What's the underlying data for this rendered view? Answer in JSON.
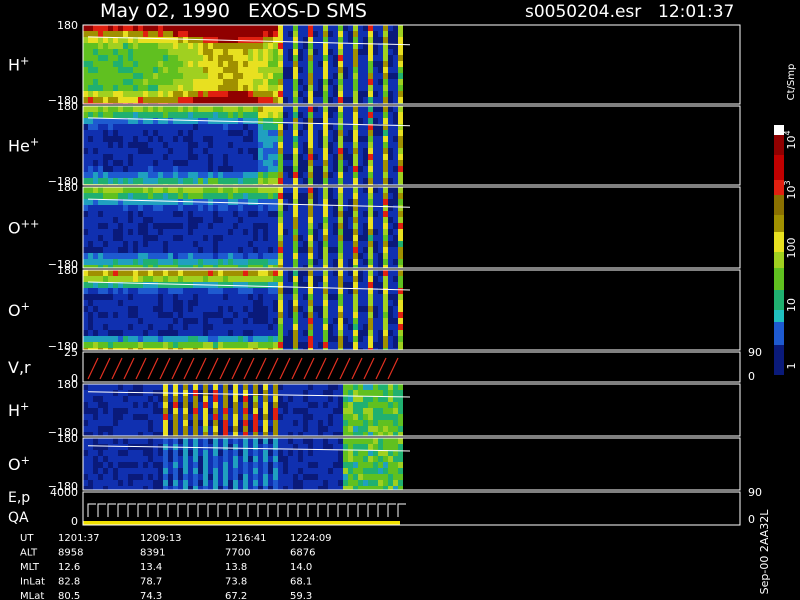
{
  "header": {
    "title": "May 02, 1990   EXOS-D SMS",
    "file": "s0050204.esr",
    "time": "12:01:37"
  },
  "panels": [
    {
      "label": "H",
      "sup": "+",
      "ticks": [
        "180",
        "−180"
      ]
    },
    {
      "label": "He",
      "sup": "+",
      "ticks": [
        "180",
        "−180"
      ]
    },
    {
      "label": "O",
      "sup": "++",
      "ticks": [
        "180",
        "−180"
      ]
    },
    {
      "label": "O",
      "sup": "+",
      "ticks": [
        "180",
        "−180"
      ]
    },
    {
      "label": "V,r",
      "ticks": [
        "25",
        "0"
      ],
      "right_ticks": [
        "90",
        "0"
      ]
    },
    {
      "label": "H",
      "sup": "+",
      "ticks": [
        "180",
        "−180"
      ]
    },
    {
      "label": "O",
      "sup": "+",
      "ticks": [
        "180",
        "−180"
      ]
    },
    {
      "label": "E,p",
      "label2": "QA",
      "ticks": [
        "4000",
        "0"
      ],
      "right_ticks": [
        "90",
        "0"
      ]
    }
  ],
  "colorbar": {
    "title": "Ct/Smp",
    "ticks": [
      {
        "base": "10",
        "sup": "4"
      },
      {
        "base": "10",
        "sup": "3"
      },
      {
        "base": "100"
      },
      {
        "base": "10"
      },
      {
        "base": "1"
      }
    ]
  },
  "footer": {
    "note": "Sep-00 2AA32L",
    "rows": [
      {
        "label": "UT",
        "values": [
          "1201:37",
          "1209:13",
          "1216:41",
          "1224:09"
        ]
      },
      {
        "label": "ALT",
        "values": [
          "8958",
          "8391",
          "7700",
          "6876"
        ]
      },
      {
        "label": "MLT",
        "values": [
          "12.6",
          "13.4",
          "13.8",
          "14.0"
        ]
      },
      {
        "label": "InLat",
        "values": [
          "82.8",
          "78.7",
          "73.8",
          "68.1"
        ]
      },
      {
        "label": "MLat",
        "values": [
          "80.5",
          "74.3",
          "67.2",
          "59.3"
        ]
      }
    ]
  }
}
